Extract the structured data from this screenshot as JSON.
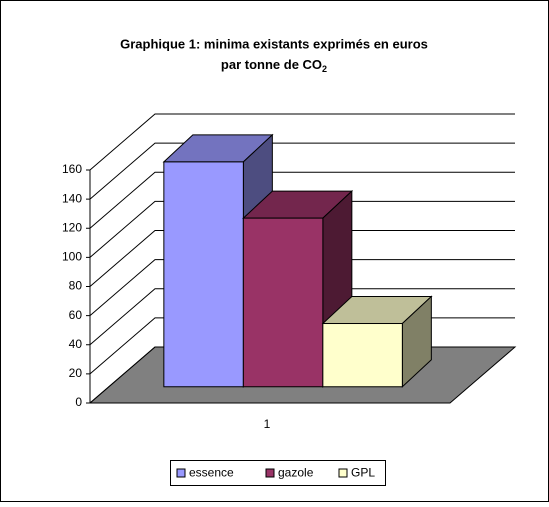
{
  "chart_data": {
    "type": "bar3d",
    "title": {
      "line1": "Graphique 1: minima existants exprimés en euros",
      "line2": "par tonne de CO",
      "subscript": "2"
    },
    "categories": [
      "1"
    ],
    "series": [
      {
        "name": "essence",
        "color": "#9999ff",
        "values": [
          160
        ]
      },
      {
        "name": "gazole",
        "color": "#993366",
        "values": [
          120
        ]
      },
      {
        "name": "GPL",
        "color": "#ffffcc",
        "values": [
          45
        ]
      }
    ],
    "ylim": [
      0,
      160
    ],
    "yticks": [
      0,
      20,
      40,
      60,
      80,
      100,
      120,
      140,
      160
    ],
    "grid": true,
    "legend": "bottom"
  }
}
